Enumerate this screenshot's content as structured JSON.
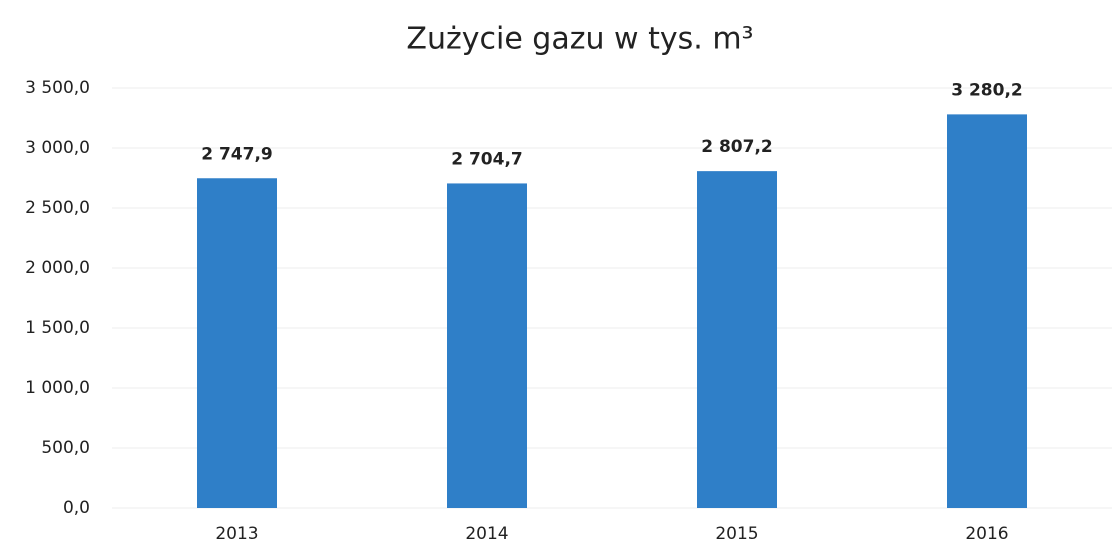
{
  "chart_data": {
    "type": "bar",
    "title": "Zużycie gazu w tys. m³",
    "categories": [
      "2013",
      "2014",
      "2015",
      "2016"
    ],
    "values": [
      2747.9,
      2704.7,
      2807.2,
      3280.2
    ],
    "value_labels": [
      "2 747,9",
      "2 704,7",
      "2 807,2",
      "3 280,2"
    ],
    "color": "#2f7fc8",
    "ylim": [
      0,
      3500
    ],
    "yticks": [
      {
        "value": 0,
        "label": "0,0"
      },
      {
        "value": 500,
        "label": "500,0"
      },
      {
        "value": 1000,
        "label": "1 000,0"
      },
      {
        "value": 1500,
        "label": "1 500,0"
      },
      {
        "value": 2000,
        "label": "2 000,0"
      },
      {
        "value": 2500,
        "label": "2 500,0"
      },
      {
        "value": 3000,
        "label": "3 000,0"
      },
      {
        "value": 3500,
        "label": "3 500,0"
      }
    ],
    "grid": true
  }
}
